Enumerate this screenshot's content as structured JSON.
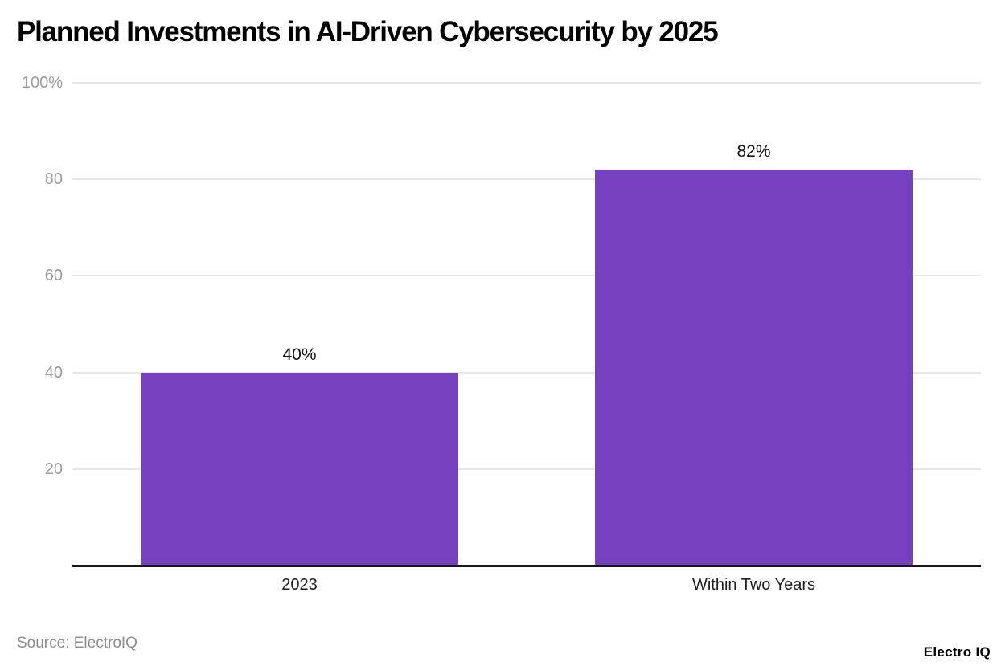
{
  "page": {
    "title": "Planned Investments in AI-Driven Cybersecurity by 2025",
    "source_note": "Source: ElectroIQ",
    "brand": "Electro IQ"
  },
  "chart_data": {
    "type": "bar",
    "title": "Planned Investments in AI-Driven Cybersecurity by 2025",
    "categories": [
      "2023",
      "Within Two Years"
    ],
    "values": [
      40,
      82
    ],
    "data_labels": [
      "40%",
      "82%"
    ],
    "xlabel": "",
    "ylabel": "",
    "ylim": [
      0,
      100
    ],
    "yticks": [
      {
        "value": 100,
        "label": "100%"
      },
      {
        "value": 80,
        "label": "80"
      },
      {
        "value": 60,
        "label": "60"
      },
      {
        "value": 40,
        "label": "40"
      },
      {
        "value": 20,
        "label": "20"
      }
    ],
    "grid": true,
    "legend_position": "none",
    "bar_color": "#7641be",
    "source": "Source: ElectroIQ",
    "watermark": "Electro IQ"
  }
}
